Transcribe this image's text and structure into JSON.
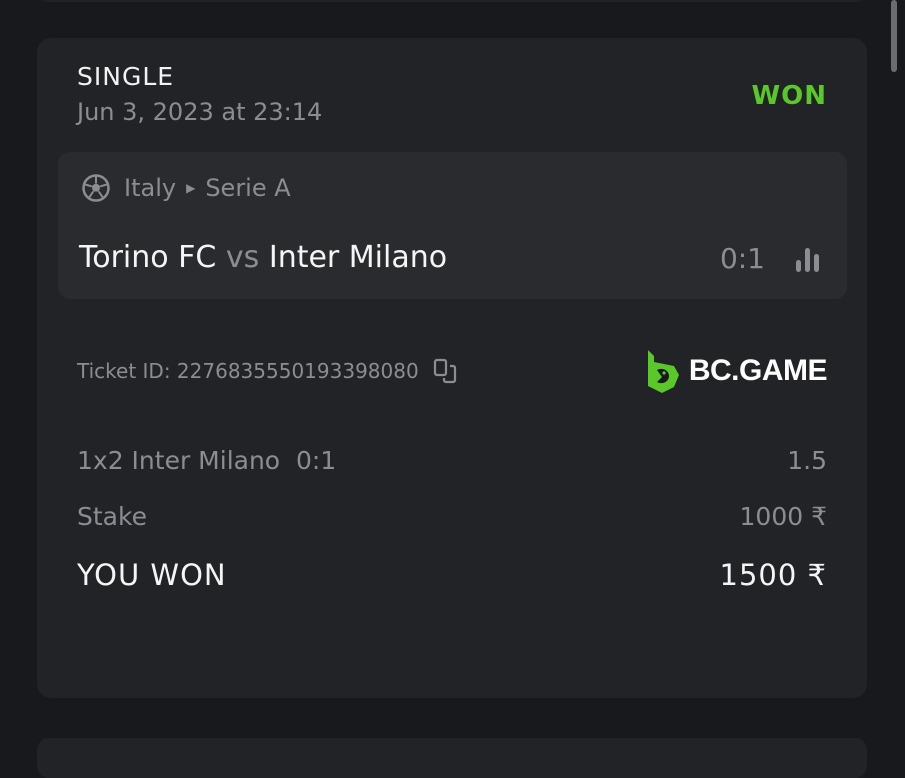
{
  "bet": {
    "type": "SINGLE",
    "date": "Jun 3, 2023 at 23:14",
    "status": "WON",
    "status_color": "#5ac828",
    "match": {
      "sport_icon": "soccer-ball-icon",
      "country": "Italy",
      "league": "Serie A",
      "home": "Torino FC",
      "vs": "vs",
      "away": "Inter Milano",
      "score": "0:1",
      "stats_icon": "bar-chart-icon"
    },
    "ticket_label": "Ticket ID: 2276835550193398080",
    "copy_icon": "copy-icon",
    "brand": "BC.GAME",
    "brand_color": "#5ac828",
    "selection": "1x2 Inter Milano  0:1",
    "odds": "1.5",
    "stake_label": "Stake",
    "stake_value": "1000 ₹",
    "won_label": "YOU WON",
    "won_value": "1500 ₹"
  }
}
